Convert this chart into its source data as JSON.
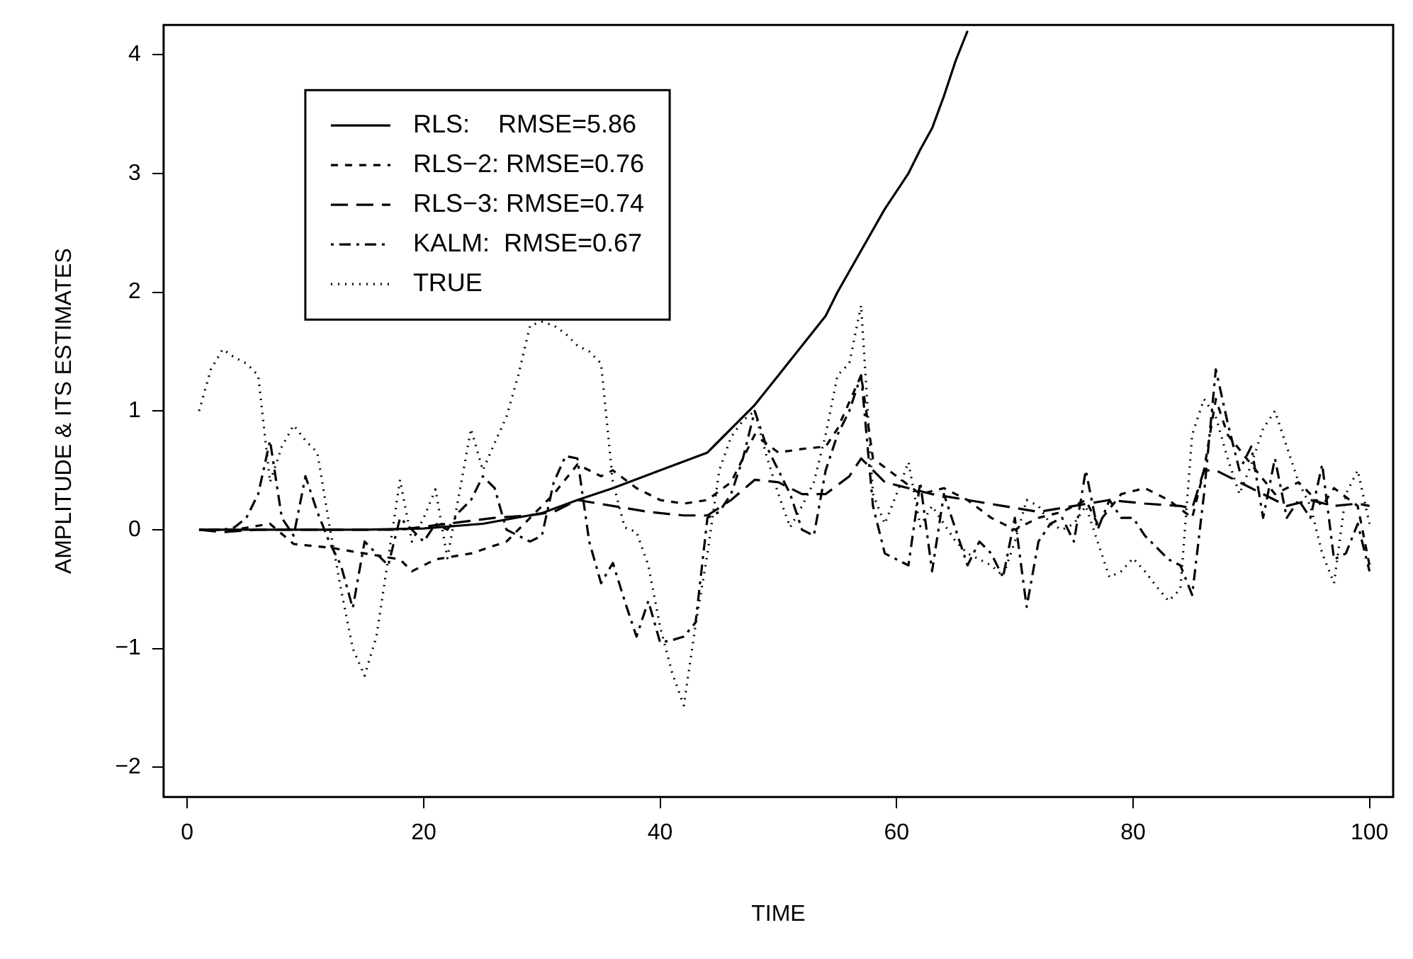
{
  "chart_data": {
    "type": "line",
    "xlabel": "TIME",
    "ylabel": "AMPLITUDE & ITS ESTIMATES",
    "xlim": [
      -2,
      102
    ],
    "xticks": [
      0,
      20,
      40,
      60,
      80,
      100
    ],
    "ylim": [
      -2.25,
      4.25
    ],
    "yticks": [
      {
        "value": -2,
        "label": "−2"
      },
      {
        "value": -1,
        "label": "−1"
      },
      0,
      1,
      2,
      3,
      4
    ],
    "grid": false,
    "legend": "top left",
    "marker": "none",
    "series": [
      {
        "name": "RLS:    RMSE=5.86",
        "color": "#000000",
        "line_style": "solid",
        "x": [
          1,
          5,
          10,
          15,
          20,
          25,
          30,
          33,
          36,
          40,
          44,
          46,
          48,
          50,
          52,
          54,
          55,
          57,
          59,
          61,
          62,
          63,
          64,
          65,
          66
        ],
        "values": [
          0,
          0,
          0,
          0,
          0.01,
          0.05,
          0.14,
          0.25,
          0.35,
          0.5,
          0.65,
          0.85,
          1.05,
          1.3,
          1.55,
          1.8,
          2.0,
          2.35,
          2.7,
          3.0,
          3.2,
          3.38,
          3.65,
          3.95,
          4.2
        ]
      },
      {
        "name": "RLS−2: RMSE=0.76",
        "color": "#000000",
        "line_style": "dashed",
        "x": [
          1,
          4,
          7,
          9,
          12,
          15,
          18,
          19,
          21,
          24,
          27,
          29,
          31,
          33,
          35,
          36,
          38,
          40,
          42,
          44,
          46,
          48,
          50,
          52,
          54,
          55,
          57,
          58,
          60,
          62,
          64,
          66,
          68,
          70,
          72,
          74,
          76,
          77,
          79,
          81,
          83,
          85,
          86,
          87,
          88,
          90,
          92,
          94,
          96,
          97,
          99,
          100
        ],
        "values": [
          0,
          0,
          0.05,
          -0.12,
          -0.15,
          -0.2,
          -0.25,
          -0.35,
          -0.25,
          -0.2,
          -0.1,
          0.1,
          0.3,
          0.55,
          0.45,
          0.5,
          0.35,
          0.25,
          0.22,
          0.25,
          0.4,
          0.8,
          0.65,
          0.68,
          0.7,
          0.85,
          1.3,
          0.6,
          0.45,
          0.3,
          0.35,
          0.25,
          0.1,
          0,
          0.1,
          0.15,
          0.25,
          0.05,
          0.3,
          0.35,
          0.25,
          0.1,
          0.5,
          1.1,
          0.8,
          0.55,
          0.3,
          0.4,
          0.2,
          0.35,
          0.2,
          -0.3
        ]
      },
      {
        "name": "RLS−3: RMSE=0.74",
        "color": "#000000",
        "line_style": "longdash",
        "x": [
          1,
          3,
          6,
          10,
          14,
          18,
          22,
          26,
          29,
          31,
          33,
          36,
          39,
          42,
          44,
          46,
          48,
          50,
          52,
          54,
          56,
          57,
          59,
          61,
          63,
          66,
          69,
          72,
          75,
          78,
          81,
          84,
          85,
          86,
          87,
          89,
          91,
          93,
          95,
          97,
          99,
          100
        ],
        "values": [
          0,
          -0.02,
          0,
          0,
          0,
          0,
          0.05,
          0.1,
          0.12,
          0.15,
          0.25,
          0.2,
          0.15,
          0.12,
          0.12,
          0.25,
          0.42,
          0.4,
          0.3,
          0.3,
          0.45,
          0.6,
          0.4,
          0.35,
          0.3,
          0.25,
          0.2,
          0.15,
          0.2,
          0.25,
          0.22,
          0.2,
          0.18,
          0.5,
          0.5,
          0.4,
          0.3,
          0.2,
          0.25,
          0.2,
          0.22,
          0.2
        ]
      },
      {
        "name": "KALM:  RMSE=0.67",
        "color": "#000000",
        "line_style": "dashdot",
        "x": [
          1,
          2,
          3,
          4,
          5,
          6,
          7,
          8,
          9,
          10,
          11,
          12,
          13,
          14,
          15,
          16,
          17,
          18,
          19,
          20,
          21,
          22,
          23,
          24,
          25,
          26,
          27,
          28,
          29,
          30,
          31,
          32,
          33,
          34,
          35,
          36,
          37,
          38,
          39,
          40,
          41,
          42,
          43,
          44,
          45,
          46,
          47,
          48,
          49,
          50,
          51,
          52,
          53,
          54,
          55,
          56,
          57,
          58,
          59,
          60,
          61,
          62,
          63,
          64,
          65,
          66,
          67,
          68,
          69,
          70,
          71,
          72,
          73,
          74,
          75,
          76,
          77,
          78,
          79,
          80,
          81,
          82,
          83,
          84,
          85,
          86,
          87,
          88,
          89,
          90,
          91,
          92,
          93,
          94,
          95,
          96,
          97,
          98,
          99,
          100
        ],
        "values": [
          0,
          0,
          0,
          0.02,
          0.1,
          0.3,
          0.75,
          0.1,
          -0.05,
          0.45,
          0.15,
          -0.1,
          -0.3,
          -0.66,
          -0.1,
          -0.2,
          -0.3,
          0.1,
          0,
          -0.1,
          0.05,
          0,
          0.15,
          0.25,
          0.45,
          0.35,
          0,
          -0.05,
          -0.1,
          -0.05,
          0.4,
          0.62,
          0.6,
          -0.1,
          -0.45,
          -0.28,
          -0.6,
          -0.9,
          -0.6,
          -0.95,
          -0.93,
          -0.9,
          -0.78,
          0.1,
          0.15,
          0.3,
          0.6,
          1.0,
          0.7,
          0.5,
          0.3,
          0,
          -0.05,
          0.5,
          0.8,
          1.0,
          1.3,
          0.2,
          -0.2,
          -0.25,
          -0.3,
          0.4,
          -0.35,
          0.3,
          0,
          -0.3,
          -0.1,
          -0.2,
          -0.4,
          0.1,
          -0.65,
          -0.1,
          0.05,
          0.1,
          -0.1,
          0.5,
          0,
          0.25,
          0.1,
          0.1,
          -0.05,
          -0.15,
          -0.25,
          -0.3,
          -0.55,
          0.3,
          1.35,
          0.9,
          0.5,
          0.7,
          0.1,
          0.6,
          0.1,
          0.25,
          0.1,
          0.55,
          -0.25,
          -0.2,
          0.05,
          -0.35
        ]
      },
      {
        "name": "TRUE",
        "color": "#000000",
        "line_style": "dotted",
        "x": [
          1,
          2,
          3,
          4,
          5,
          6,
          7,
          8,
          9,
          10,
          11,
          12,
          13,
          14,
          15,
          16,
          17,
          18,
          19,
          20,
          21,
          22,
          23,
          24,
          25,
          26,
          27,
          28,
          29,
          30,
          31,
          32,
          33,
          34,
          35,
          36,
          37,
          38,
          39,
          40,
          41,
          42,
          43,
          44,
          45,
          46,
          47,
          48,
          49,
          50,
          51,
          52,
          53,
          54,
          55,
          56,
          57,
          58,
          59,
          60,
          61,
          62,
          63,
          64,
          65,
          66,
          67,
          68,
          69,
          70,
          71,
          72,
          73,
          74,
          75,
          76,
          77,
          78,
          79,
          80,
          81,
          82,
          83,
          84,
          85,
          86,
          87,
          88,
          89,
          90,
          91,
          92,
          93,
          94,
          95,
          96,
          97,
          98,
          99,
          100
        ],
        "values": [
          1.0,
          1.35,
          1.52,
          1.45,
          1.4,
          1.3,
          0.4,
          0.7,
          0.88,
          0.75,
          0.65,
          0.05,
          -0.5,
          -1.0,
          -1.23,
          -0.9,
          -0.24,
          0.42,
          -0.1,
          0.1,
          0.34,
          -0.24,
          0.3,
          0.85,
          0.5,
          0.73,
          0.95,
          1.3,
          1.72,
          1.75,
          1.72,
          1.65,
          1.55,
          1.5,
          1.4,
          0.4,
          0.02,
          -0.02,
          -0.3,
          -0.82,
          -1.2,
          -1.48,
          -0.8,
          -0.2,
          0.5,
          0.78,
          0.92,
          1.0,
          0.62,
          0.3,
          0.02,
          0.2,
          0.4,
          0.8,
          1.3,
          1.4,
          1.89,
          0.3,
          0.05,
          0.3,
          0.57,
          0.03,
          0.2,
          0.05,
          -0.1,
          -0.2,
          -0.25,
          -0.3,
          -0.39,
          -0.1,
          0.25,
          0.2,
          0.05,
          0,
          0.05,
          0.2,
          -0.1,
          -0.4,
          -0.35,
          -0.24,
          -0.35,
          -0.48,
          -0.6,
          -0.5,
          0.8,
          1.1,
          0.95,
          0.6,
          0.3,
          0.55,
          0.85,
          1.0,
          0.7,
          0.4,
          0.2,
          -0.2,
          -0.45,
          0.3,
          0.5,
          0.05
        ]
      }
    ]
  }
}
